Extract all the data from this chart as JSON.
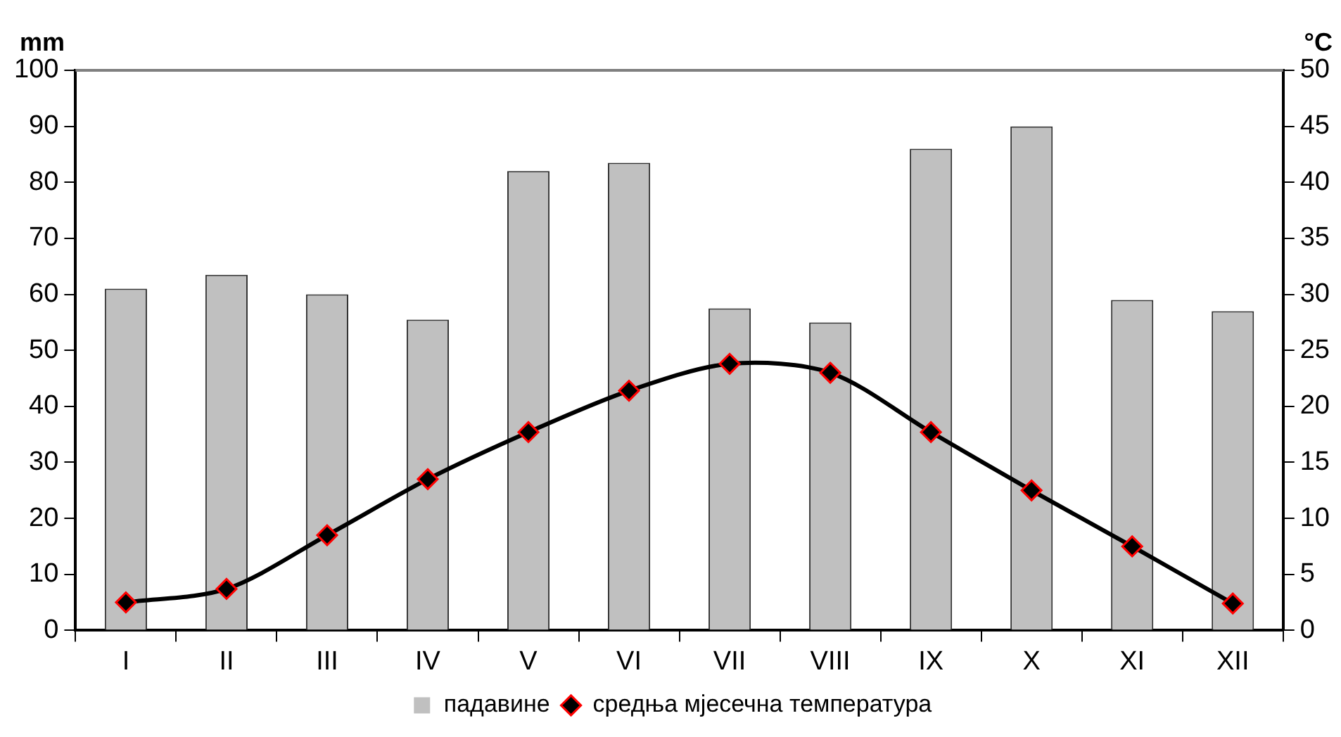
{
  "chart_data": {
    "type": "bar",
    "ylabel": "mm",
    "y2label": "°C",
    "categories": [
      "I",
      "II",
      "III",
      "IV",
      "V",
      "VI",
      "VII",
      "VIII",
      "IX",
      "X",
      "XI",
      "XII"
    ],
    "series": [
      {
        "name": "падавине",
        "color": "#c0c0c0",
        "values": [
          61,
          63.5,
          60,
          55.5,
          82,
          83.5,
          57.5,
          55,
          86,
          90,
          59,
          57
        ]
      },
      {
        "name": "средња мјесечна температура",
        "type": "line",
        "axis": "y2",
        "color": "#000000",
        "marker": "diamond",
        "values": [
          2.5,
          3.7,
          8.5,
          13.5,
          17.7,
          21.4,
          23.8,
          23,
          17.7,
          12.5,
          7.5,
          2.4
        ]
      }
    ],
    "ylim": [
      0,
      100
    ],
    "yticks": [
      0,
      10,
      20,
      30,
      40,
      50,
      60,
      70,
      80,
      90,
      100
    ],
    "y2lim": [
      0,
      50
    ],
    "y2ticks": [
      0,
      5,
      10,
      15,
      20,
      25,
      30,
      35,
      40,
      45,
      50
    ],
    "grid": false,
    "legend": "bottom"
  }
}
